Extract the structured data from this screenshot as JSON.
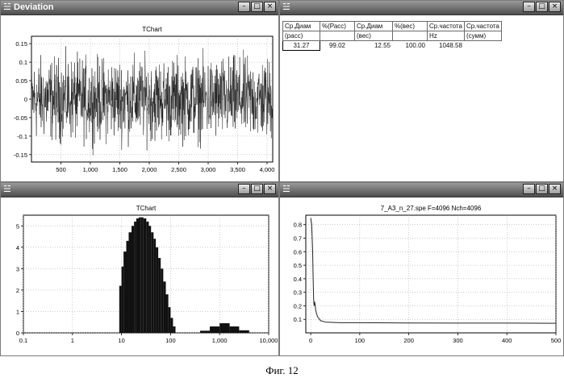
{
  "windows": {
    "deviation": {
      "title": "Deviation",
      "icon": "form-icon"
    },
    "table": {
      "title": "",
      "icon": "form-icon"
    },
    "histogram": {
      "title": "",
      "icon": "form-icon"
    },
    "spectrum": {
      "title": "",
      "icon": "form-icon"
    }
  },
  "window_buttons": {
    "minimize": "–",
    "maximize": "□",
    "close": "×"
  },
  "results_table": {
    "headers": [
      "Ср.Диам",
      "%(Расс)",
      "Ср.Диам",
      "%(вес)",
      "Ср.частота",
      "Ср.частота"
    ],
    "subheaders": [
      "(расс)",
      "",
      "(вес)",
      "",
      "Hz",
      "(сумм)"
    ],
    "rows": [
      [
        "31.27",
        "99.02",
        "12.55",
        "100.00",
        "1048.58",
        ""
      ]
    ]
  },
  "caption": "Фиг. 12",
  "chart_data": [
    {
      "id": "deviation",
      "type": "line",
      "title": "TChart",
      "xlim": [
        0,
        4096
      ],
      "ylim": [
        -0.17,
        0.17
      ],
      "xticks": [
        500,
        1000,
        1500,
        2000,
        2500,
        3000,
        3500,
        4000
      ],
      "xtick_labels": [
        "500",
        "1,000",
        "1,500",
        "2,000",
        "2,500",
        "3,000",
        "3,500",
        "4,000"
      ],
      "yticks": [
        0.15,
        0.1,
        0.05,
        0,
        -0.05,
        -0.1,
        -0.15
      ],
      "ytick_labels": [
        "0.15",
        "0.1",
        "0.05",
        "0",
        "-0.05",
        "-0.1",
        "-0.15"
      ],
      "series": [
        {
          "n": 4096,
          "amplitude": 0.16,
          "line_color": "#202020"
        }
      ]
    },
    {
      "id": "histogram",
      "type": "bar",
      "title": "TChart",
      "x_scale": "log",
      "xlim": [
        0.1,
        10000
      ],
      "ylim": [
        0,
        5.5
      ],
      "xticks": [
        0.1,
        1,
        10,
        100,
        1000,
        10000
      ],
      "xtick_labels": [
        "0.1",
        "1",
        "10",
        "100",
        "1,000",
        "10,000"
      ],
      "yticks": [
        0,
        1,
        2,
        3,
        4,
        5
      ],
      "ytick_labels": [
        "0",
        "1",
        "2",
        "3",
        "4",
        "5"
      ],
      "bins": [
        {
          "x0": 9,
          "x1": 10,
          "value": 2.2
        },
        {
          "x0": 10,
          "x1": 11,
          "value": 3.1
        },
        {
          "x0": 11,
          "x1": 12.5,
          "value": 3.8
        },
        {
          "x0": 12.5,
          "x1": 14,
          "value": 4.3
        },
        {
          "x0": 14,
          "x1": 16,
          "value": 4.7
        },
        {
          "x0": 16,
          "x1": 18,
          "value": 5.0
        },
        {
          "x0": 18,
          "x1": 20,
          "value": 5.2
        },
        {
          "x0": 20,
          "x1": 22.5,
          "value": 5.35
        },
        {
          "x0": 22.5,
          "x1": 25,
          "value": 5.4
        },
        {
          "x0": 25,
          "x1": 28,
          "value": 5.4
        },
        {
          "x0": 28,
          "x1": 32,
          "value": 5.35
        },
        {
          "x0": 32,
          "x1": 36,
          "value": 5.2
        },
        {
          "x0": 36,
          "x1": 40,
          "value": 5.0
        },
        {
          "x0": 40,
          "x1": 45,
          "value": 4.7
        },
        {
          "x0": 45,
          "x1": 50,
          "value": 4.4
        },
        {
          "x0": 50,
          "x1": 56,
          "value": 4.0
        },
        {
          "x0": 56,
          "x1": 63,
          "value": 3.5
        },
        {
          "x0": 63,
          "x1": 71,
          "value": 3.0
        },
        {
          "x0": 71,
          "x1": 80,
          "value": 2.4
        },
        {
          "x0": 80,
          "x1": 90,
          "value": 1.8
        },
        {
          "x0": 90,
          "x1": 100,
          "value": 1.2
        },
        {
          "x0": 100,
          "x1": 112,
          "value": 0.7
        },
        {
          "x0": 112,
          "x1": 126,
          "value": 0.3
        },
        {
          "x0": 400,
          "x1": 630,
          "value": 0.1
        },
        {
          "x0": 630,
          "x1": 1000,
          "value": 0.3
        },
        {
          "x0": 1000,
          "x1": 1600,
          "value": 0.45
        },
        {
          "x0": 1600,
          "x1": 2500,
          "value": 0.3
        },
        {
          "x0": 2500,
          "x1": 4000,
          "value": 0.12
        }
      ],
      "bar_color": "#111111"
    },
    {
      "id": "spectrum",
      "type": "line",
      "title": "7_A3_n_27.spe F=4096 Nch=4096",
      "xlim": [
        -10,
        500
      ],
      "ylim": [
        0,
        0.87
      ],
      "xticks": [
        0,
        100,
        200,
        300,
        400,
        500
      ],
      "xtick_labels": [
        "0",
        "100",
        "200",
        "300",
        "400",
        "500"
      ],
      "yticks": [
        0.1,
        0.2,
        0.3,
        0.4,
        0.5,
        0.6,
        0.7,
        0.8
      ],
      "ytick_labels": [
        "0.1",
        "0.2",
        "0.3",
        "0.4",
        "0.5",
        "0.6",
        "0.7",
        "0.8"
      ],
      "series": [
        {
          "x": [
            0,
            2,
            4,
            5,
            6,
            7,
            8,
            9,
            10,
            12,
            14,
            16,
            18,
            20,
            25,
            30,
            40,
            60,
            100,
            200,
            300,
            400,
            500
          ],
          "y": [
            0.85,
            0.8,
            0.6,
            0.4,
            0.25,
            0.2,
            0.23,
            0.21,
            0.17,
            0.14,
            0.12,
            0.11,
            0.1,
            0.09,
            0.085,
            0.08,
            0.078,
            0.075,
            0.075,
            0.073,
            0.072,
            0.072,
            0.071
          ],
          "line_color": "#222222"
        }
      ]
    }
  ]
}
